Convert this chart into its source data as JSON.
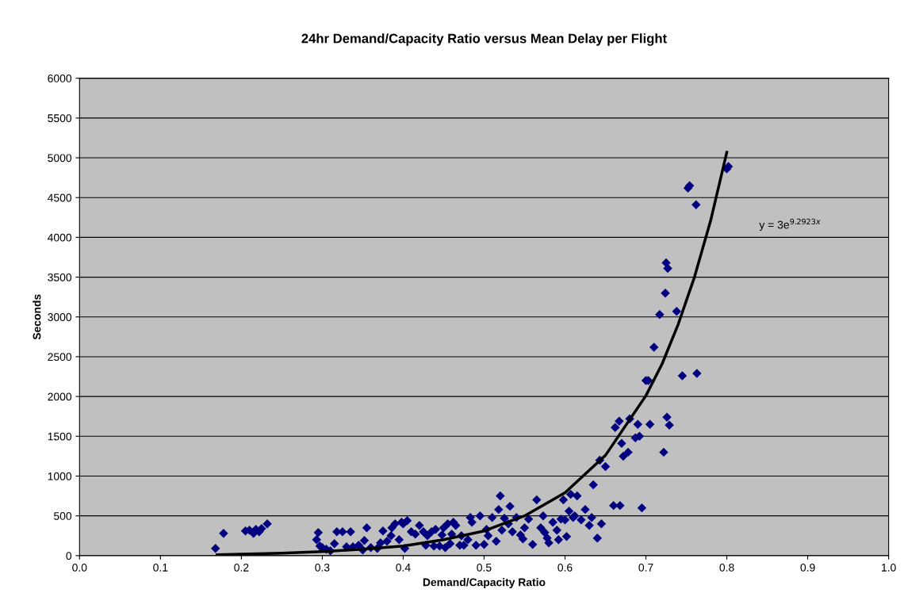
{
  "chart_data": {
    "type": "scatter",
    "title": "24hr Demand/Capacity Ratio versus Mean Delay per Flight",
    "xlabel": "Demand/Capacity Ratio",
    "ylabel": "Seconds",
    "xlim": [
      0,
      1
    ],
    "xticks": [
      {
        "value": 0,
        "label": "0.0"
      },
      {
        "value": 0.1,
        "label": "0.1"
      },
      {
        "value": 0.2,
        "label": "0.2"
      },
      {
        "value": 0.3,
        "label": "0.3"
      },
      {
        "value": 0.4,
        "label": "0.4"
      },
      {
        "value": 0.5,
        "label": "0.5"
      },
      {
        "value": 0.6,
        "label": "0.6"
      },
      {
        "value": 0.7,
        "label": "0.7"
      },
      {
        "value": 0.8,
        "label": "0.8"
      },
      {
        "value": 0.9,
        "label": "0.9"
      },
      {
        "value": 1,
        "label": "1.0"
      }
    ],
    "ylim": [
      0,
      6000
    ],
    "yticks": [
      0,
      500,
      1000,
      1500,
      2000,
      2500,
      3000,
      3500,
      4000,
      4500,
      5000,
      5500,
      6000
    ],
    "grid": "y",
    "legend": false,
    "annotations": [
      "y = 3e$^{9.2923x}$"
    ],
    "series": [
      {
        "color": "#000080",
        "marker": "diamond",
        "x": [
          0.168,
          0.178,
          0.205,
          0.21,
          0.215,
          0.218,
          0.222,
          0.225,
          0.232,
          0.293,
          0.295,
          0.297,
          0.3,
          0.305,
          0.31,
          0.315,
          0.318,
          0.325,
          0.33,
          0.335,
          0.338,
          0.345,
          0.35,
          0.352,
          0.355,
          0.36,
          0.368,
          0.372,
          0.375,
          0.38,
          0.385,
          0.386,
          0.39,
          0.395,
          0.398,
          0.4,
          0.402,
          0.405,
          0.41,
          0.415,
          0.42,
          0.425,
          0.428,
          0.43,
          0.435,
          0.438,
          0.44,
          0.445,
          0.448,
          0.45,
          0.452,
          0.455,
          0.458,
          0.46,
          0.462,
          0.465,
          0.47,
          0.472,
          0.475,
          0.48,
          0.483,
          0.485,
          0.49,
          0.495,
          0.5,
          0.503,
          0.505,
          0.51,
          0.515,
          0.518,
          0.52,
          0.522,
          0.525,
          0.53,
          0.532,
          0.535,
          0.54,
          0.545,
          0.548,
          0.55,
          0.555,
          0.56,
          0.565,
          0.57,
          0.573,
          0.575,
          0.578,
          0.58,
          0.585,
          0.59,
          0.592,
          0.595,
          0.598,
          0.6,
          0.602,
          0.605,
          0.607,
          0.61,
          0.612,
          0.615,
          0.62,
          0.625,
          0.63,
          0.633,
          0.635,
          0.64,
          0.643,
          0.645,
          0.65,
          0.66,
          0.662,
          0.667,
          0.668,
          0.67,
          0.672,
          0.678,
          0.68,
          0.687,
          0.69,
          0.692,
          0.695,
          0.7,
          0.703,
          0.705,
          0.71,
          0.717,
          0.722,
          0.724,
          0.725,
          0.727,
          0.726,
          0.729,
          0.738,
          0.745,
          0.752,
          0.754,
          0.762,
          0.763,
          0.8,
          0.802
        ],
        "values": [
          90,
          280,
          310,
          320,
          280,
          330,
          300,
          340,
          400,
          200,
          290,
          120,
          100,
          80,
          60,
          150,
          300,
          300,
          110,
          300,
          110,
          130,
          70,
          190,
          350,
          100,
          90,
          160,
          310,
          180,
          250,
          350,
          400,
          200,
          420,
          400,
          90,
          440,
          300,
          270,
          380,
          300,
          130,
          250,
          300,
          120,
          330,
          120,
          260,
          350,
          100,
          400,
          150,
          270,
          420,
          380,
          130,
          250,
          130,
          200,
          480,
          420,
          130,
          500,
          140,
          330,
          250,
          480,
          180,
          580,
          750,
          320,
          470,
          400,
          620,
          300,
          480,
          260,
          210,
          350,
          460,
          140,
          700,
          350,
          500,
          290,
          220,
          160,
          420,
          320,
          200,
          460,
          700,
          450,
          240,
          560,
          770,
          480,
          500,
          750,
          450,
          580,
          380,
          480,
          890,
          220,
          1200,
          400,
          1120,
          630,
          1610,
          1690,
          630,
          1410,
          1250,
          1300,
          1720,
          1480,
          1650,
          1500,
          600,
          2200,
          2200,
          1650,
          2620,
          3030,
          1300,
          3300,
          3680,
          3610,
          1740,
          1640,
          3070,
          2260,
          4620,
          4650,
          4410,
          2290,
          4860,
          4890
        ]
      },
      {
        "type": "line",
        "color": "#000000",
        "marker": "none",
        "line_style": "solid",
        "x": [
          0.17,
          0.25,
          0.3,
          0.35,
          0.4,
          0.45,
          0.5,
          0.55,
          0.6,
          0.65,
          0.7,
          0.72,
          0.74,
          0.76,
          0.78,
          0.8
        ],
        "values": [
          10,
          30,
          50,
          80,
          120,
          200,
          310,
          500,
          790,
          1260,
          2010,
          2410,
          2910,
          3500,
          4210,
          5070
        ]
      }
    ]
  }
}
